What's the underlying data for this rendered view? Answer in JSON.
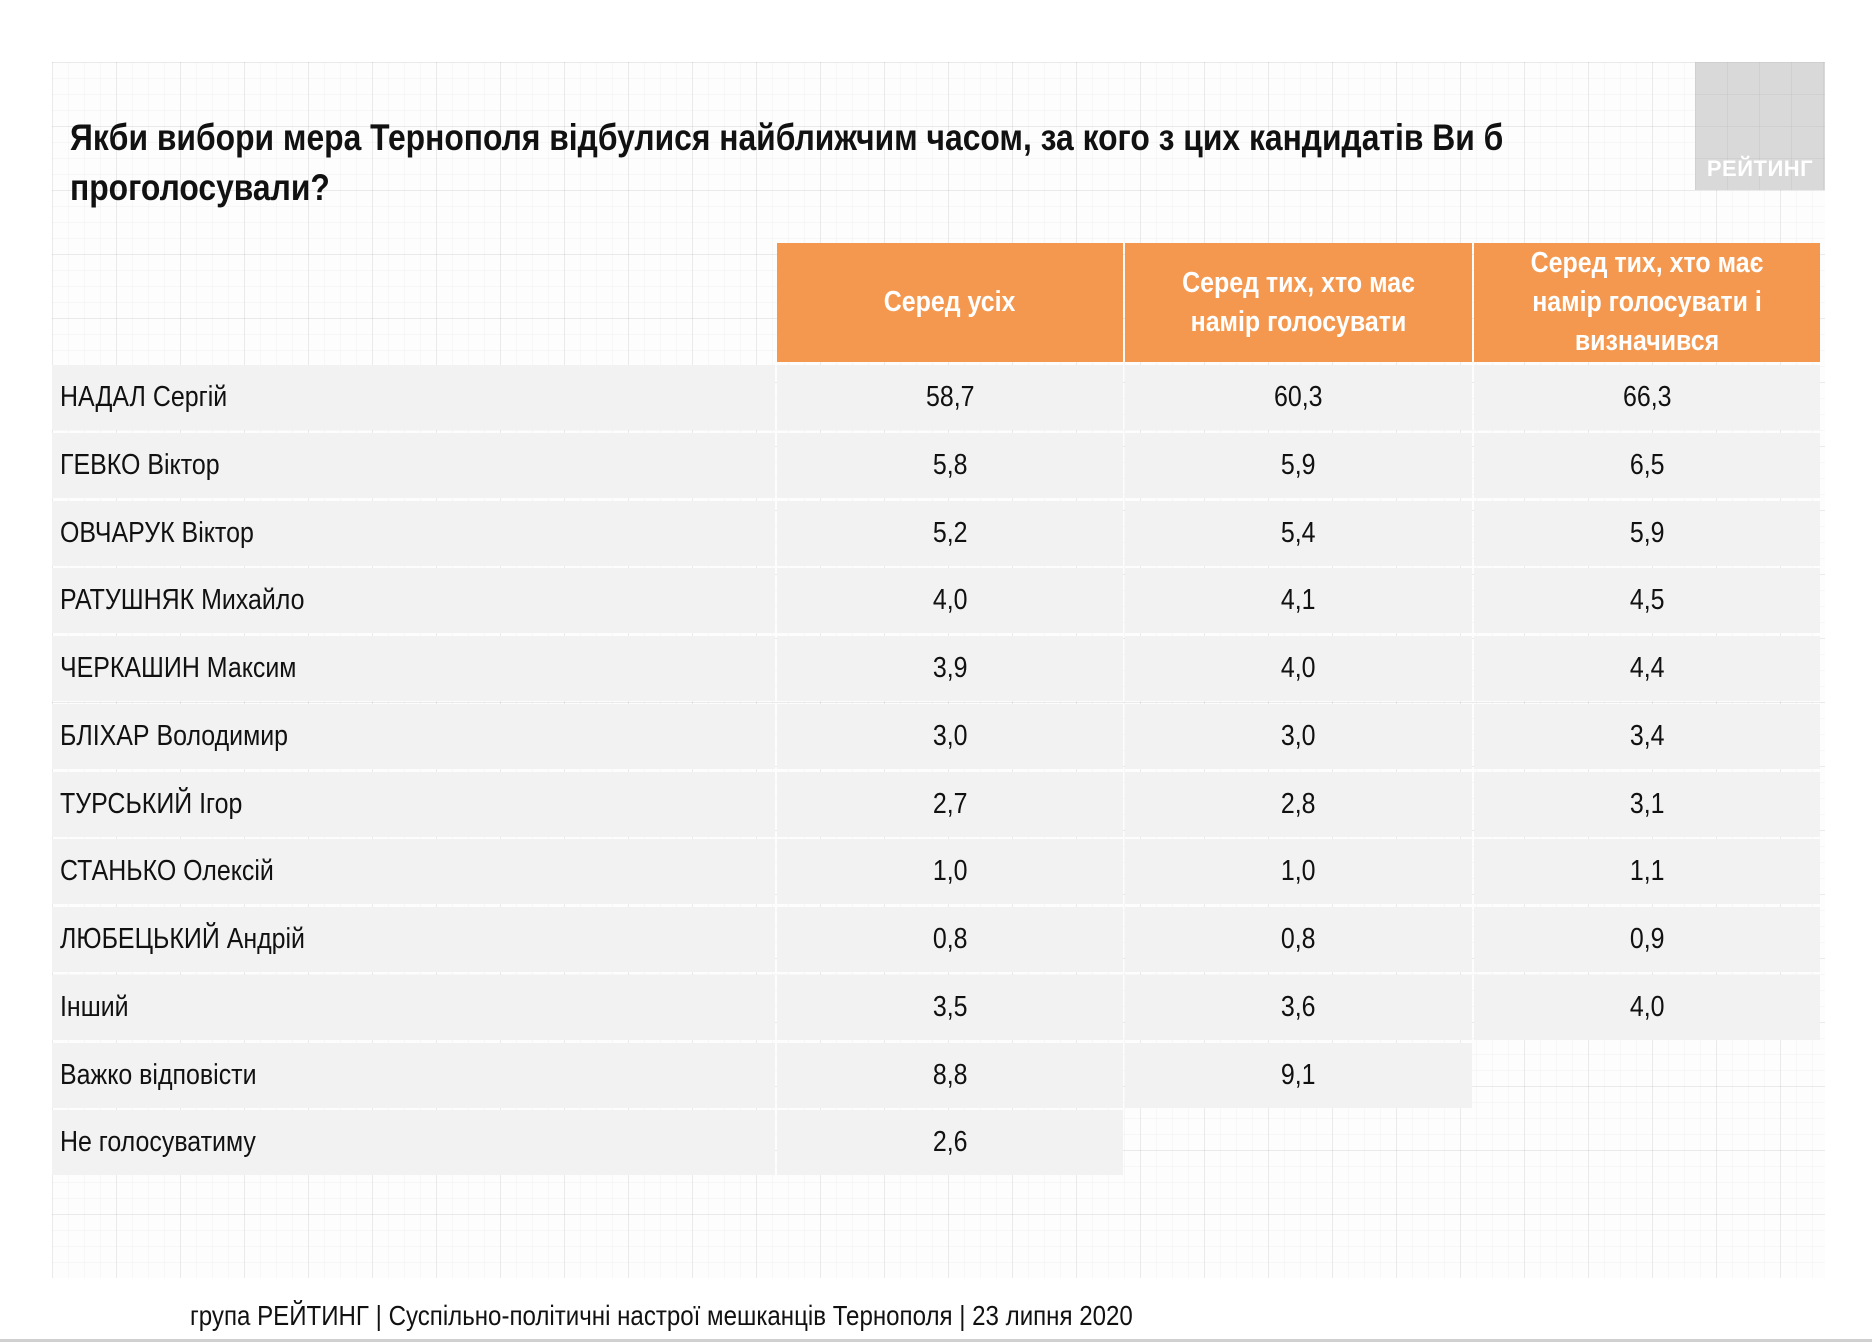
{
  "logo": {
    "text": "РЕЙТИНГ"
  },
  "title": "Якби вибори мера Тернополя відбулися найближчим часом, за кого з цих кандидатів Ви б проголосували?",
  "colors": {
    "header": "#F4974F",
    "cell": "#F2F2F2"
  },
  "table": {
    "columns": [
      "Серед усіх",
      "Серед тих, хто має намір голосувати",
      "Серед тих, хто має намір голосувати і визначився"
    ],
    "rows": [
      {
        "label": "НАДАЛ Сергій",
        "values": [
          "58,7",
          "60,3",
          "66,3"
        ]
      },
      {
        "label": "ГЕВКО Віктор",
        "values": [
          "5,8",
          "5,9",
          "6,5"
        ]
      },
      {
        "label": "ОВЧАРУК Віктор",
        "values": [
          "5,2",
          "5,4",
          "5,9"
        ]
      },
      {
        "label": "РАТУШНЯК Михайло",
        "values": [
          "4,0",
          "4,1",
          "4,5"
        ]
      },
      {
        "label": "ЧЕРКАШИН Максим",
        "values": [
          "3,9",
          "4,0",
          "4,4"
        ]
      },
      {
        "label": "БЛІХАР Володимир",
        "values": [
          "3,0",
          "3,0",
          "3,4"
        ]
      },
      {
        "label": "ТУРСЬКИЙ Ігор",
        "values": [
          "2,7",
          "2,8",
          "3,1"
        ]
      },
      {
        "label": "СТАНЬКО Олексій",
        "values": [
          "1,0",
          "1,0",
          "1,1"
        ]
      },
      {
        "label": "ЛЮБЕЦЬКИЙ Андрій",
        "values": [
          "0,8",
          "0,8",
          "0,9"
        ]
      },
      {
        "label": "Інший",
        "values": [
          "3,5",
          "3,6",
          "4,0"
        ]
      },
      {
        "label": "Важко відповісти",
        "values": [
          "8,8",
          "9,1"
        ]
      },
      {
        "label": "Не голосуватиму",
        "values": [
          "2,6"
        ]
      }
    ]
  },
  "footer": "група РЕЙТИНГ | Суспільно-політичні настрої мешканців Тернополя | 23 липня 2020"
}
